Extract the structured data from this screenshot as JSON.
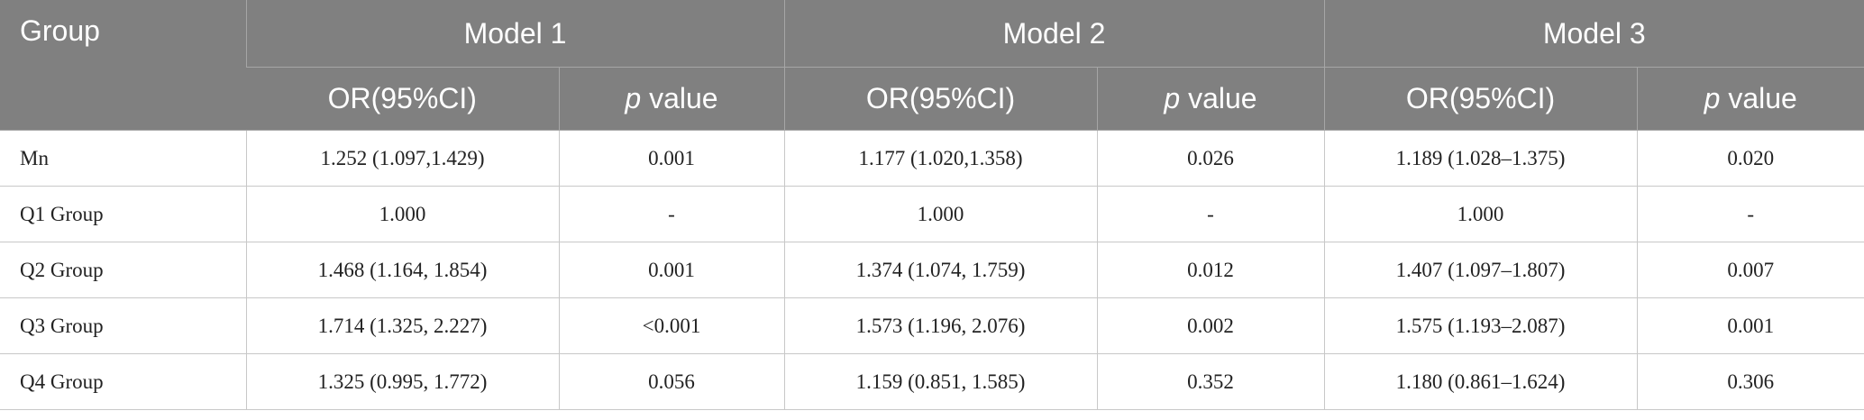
{
  "table": {
    "group_header": "Group",
    "models": [
      "Model 1",
      "Model 2",
      "Model 3"
    ],
    "subheaders": {
      "or": "OR(95%CI)",
      "p_italic": "p",
      "p_rest": " value"
    },
    "rows": [
      [
        "Mn",
        "1.252 (1.097,1.429)",
        "0.001",
        "1.177 (1.020,1.358)",
        "0.026",
        "1.189 (1.028–1.375)",
        "0.020"
      ],
      [
        "Q1 Group",
        "1.000",
        "-",
        "1.000",
        "-",
        "1.000",
        "-"
      ],
      [
        "Q2 Group",
        "1.468 (1.164, 1.854)",
        "0.001",
        "1.374 (1.074, 1.759)",
        "0.012",
        "1.407 (1.097–1.807)",
        "0.007"
      ],
      [
        "Q3 Group",
        "1.714 (1.325, 2.227)",
        "<0.001",
        "1.573 (1.196, 2.076)",
        "0.002",
        "1.575 (1.193–2.087)",
        "0.001"
      ],
      [
        "Q4 Group",
        "1.325 (0.995, 1.772)",
        "0.056",
        "1.159 (0.851, 1.585)",
        "0.352",
        "1.180 (0.861–1.624)",
        "0.306"
      ]
    ]
  }
}
